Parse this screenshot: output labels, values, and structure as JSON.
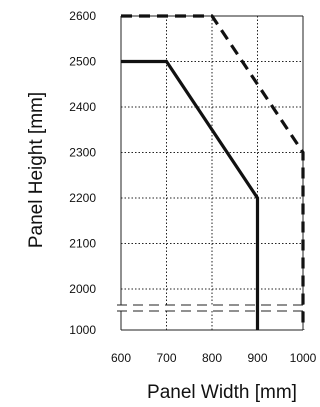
{
  "chart_data": {
    "type": "line",
    "xlabel": "Panel Width [mm]",
    "ylabel": "Panel Height [mm]",
    "x_ticks": [
      "600",
      "700",
      "800",
      "900",
      "1000"
    ],
    "y_ticks": [
      "1000",
      "2000",
      "2100",
      "2200",
      "2300",
      "2400",
      "2500",
      "2600"
    ],
    "xlim": [
      600,
      1000
    ],
    "ylim_upper": [
      1950,
      2600
    ],
    "y_axis_break": {
      "below": 1950,
      "resumes_at": 1000
    },
    "grid": true,
    "legend": "none",
    "series": [
      {
        "style": "solid",
        "color": "#111111",
        "points": [
          [
            600,
            2500
          ],
          [
            700,
            2500
          ],
          [
            900,
            2200
          ],
          [
            900,
            1000
          ]
        ]
      },
      {
        "style": "dashed",
        "color": "#111111",
        "points": [
          [
            600,
            2600
          ],
          [
            800,
            2600
          ],
          [
            1000,
            2300
          ],
          [
            1000,
            1000
          ]
        ]
      }
    ]
  }
}
